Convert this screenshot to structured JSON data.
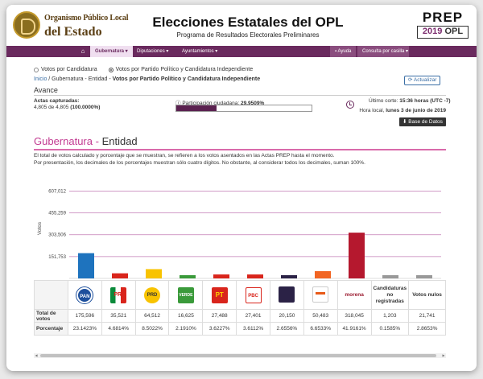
{
  "header": {
    "org_line1": "Organismo Público Local",
    "org_line2": "del Estado",
    "title": "Elecciones Estatales del OPL",
    "subtitle": "Programa de Resultados Electorales Preliminares",
    "prep_word": "PREP",
    "prep_year": "2019",
    "prep_opl": "OPL"
  },
  "nav": {
    "home_icon": "home-icon",
    "items": [
      {
        "label": "Gubernatura ▾"
      },
      {
        "label": "Diputaciones ▾"
      },
      {
        "label": "Ayuntamientos ▾"
      }
    ],
    "help": "Ayuda",
    "consulta": "Consulta por casilla ▾"
  },
  "filters": {
    "option1": "Votos por Candidatura",
    "option2": "Votos por Partido Político y Candidatura Independiente",
    "selected": 2
  },
  "breadcrumb": {
    "home": "Inicio",
    "middle": " / Gubernatura - Entidad - ",
    "current": "Votos por Partido Político y Candidatura Independiente"
  },
  "update_button": "⟳ Actualizar",
  "avance": {
    "title": "Avance",
    "actas_label": "Actas capturadas:",
    "actas_value": "4,805 de 4,805 ",
    "actas_pct": "(100.0000%)",
    "participacion_label": "Participación ciudadana: ",
    "participacion_value": "29.9509%",
    "participacion_fraction": 0.299509,
    "corte_label": "Último corte: ",
    "corte_value": "15:36 horas (UTC -7)",
    "hora_label": "Hora local, ",
    "hora_value": "lunes 3 de junio de 2019",
    "db_button": "⬇ Base de Datos"
  },
  "section": {
    "title": "Gubernatura",
    "sep": " - ",
    "entity": "Entidad",
    "note1": "El total de votos calculado y porcentaje que se muestran, se refieren a los votos asentados en las Actas PREP hasta el momento.",
    "note2": "Por presentación, los decimales de los porcentajes muestran sólo cuatro dígitos. No obstante, al considerar todos los decimales, suman 100%."
  },
  "chart_data": {
    "type": "bar",
    "ylabel": "Votos",
    "yticks": [
      "607,012",
      "455,259",
      "303,506",
      "151,753"
    ],
    "ytick_values": [
      607012,
      455259,
      303506,
      151753
    ],
    "ylim": [
      0,
      660000
    ],
    "grid": true,
    "categories": [
      "PAN",
      "PRI",
      "PRD",
      "VERDE",
      "PT",
      "PBC",
      "TRANSFORMEMOS",
      "MOVIMIENTO CIUDADANO",
      "morena",
      "Candidaturas no registradas",
      "Votos nulos"
    ],
    "values": [
      175596,
      35521,
      64512,
      16625,
      27488,
      27401,
      20150,
      50483,
      318045,
      1203,
      21741
    ],
    "colors": [
      "#1e73be",
      "#d9251c",
      "#f8c300",
      "#3a9a3a",
      "#d9251c",
      "#d9251c",
      "#2b2246",
      "#f26522",
      "#b5182e",
      "#999999",
      "#999999"
    ]
  },
  "table": {
    "row_total_label": "Total de votos",
    "row_pct_label": "Porcentaje",
    "logos": [
      {
        "icon": "pan-logo-icon",
        "text": "PAN",
        "cls": "lg-pan"
      },
      {
        "icon": "pri-logo-icon",
        "text": "PRI",
        "cls": "lg-pri"
      },
      {
        "icon": "prd-logo-icon",
        "text": "PRD",
        "cls": "lg-prd"
      },
      {
        "icon": "verde-logo-icon",
        "text": "VERDE",
        "cls": "lg-verde"
      },
      {
        "icon": "pt-logo-icon",
        "text": "PT",
        "cls": "lg-pt"
      },
      {
        "icon": "pbc-logo-icon",
        "text": "PBC",
        "cls": "lg-pbc"
      },
      {
        "icon": "transformemos-logo-icon",
        "text": "",
        "cls": "lg-trans"
      },
      {
        "icon": "movimiento-ciudadano-logo-icon",
        "text": "",
        "cls": "lg-mc"
      },
      {
        "icon": "morena-logo-icon",
        "text": "morena",
        "cls": "lg-morena"
      }
    ],
    "extra_headers": [
      "Candidaturas no registradas",
      "Votos nulos"
    ],
    "totals": [
      "175,596",
      "35,521",
      "64,512",
      "16,625",
      "27,488",
      "27,401",
      "20,150",
      "50,483",
      "318,045",
      "1,203",
      "21,741"
    ],
    "percents": [
      "23.1423%",
      "4.6814%",
      "8.5022%",
      "2.1910%",
      "3.6227%",
      "3.6112%",
      "2.6556%",
      "6.6533%",
      "41.9161%",
      "0.1585%",
      "2.8653%"
    ]
  }
}
